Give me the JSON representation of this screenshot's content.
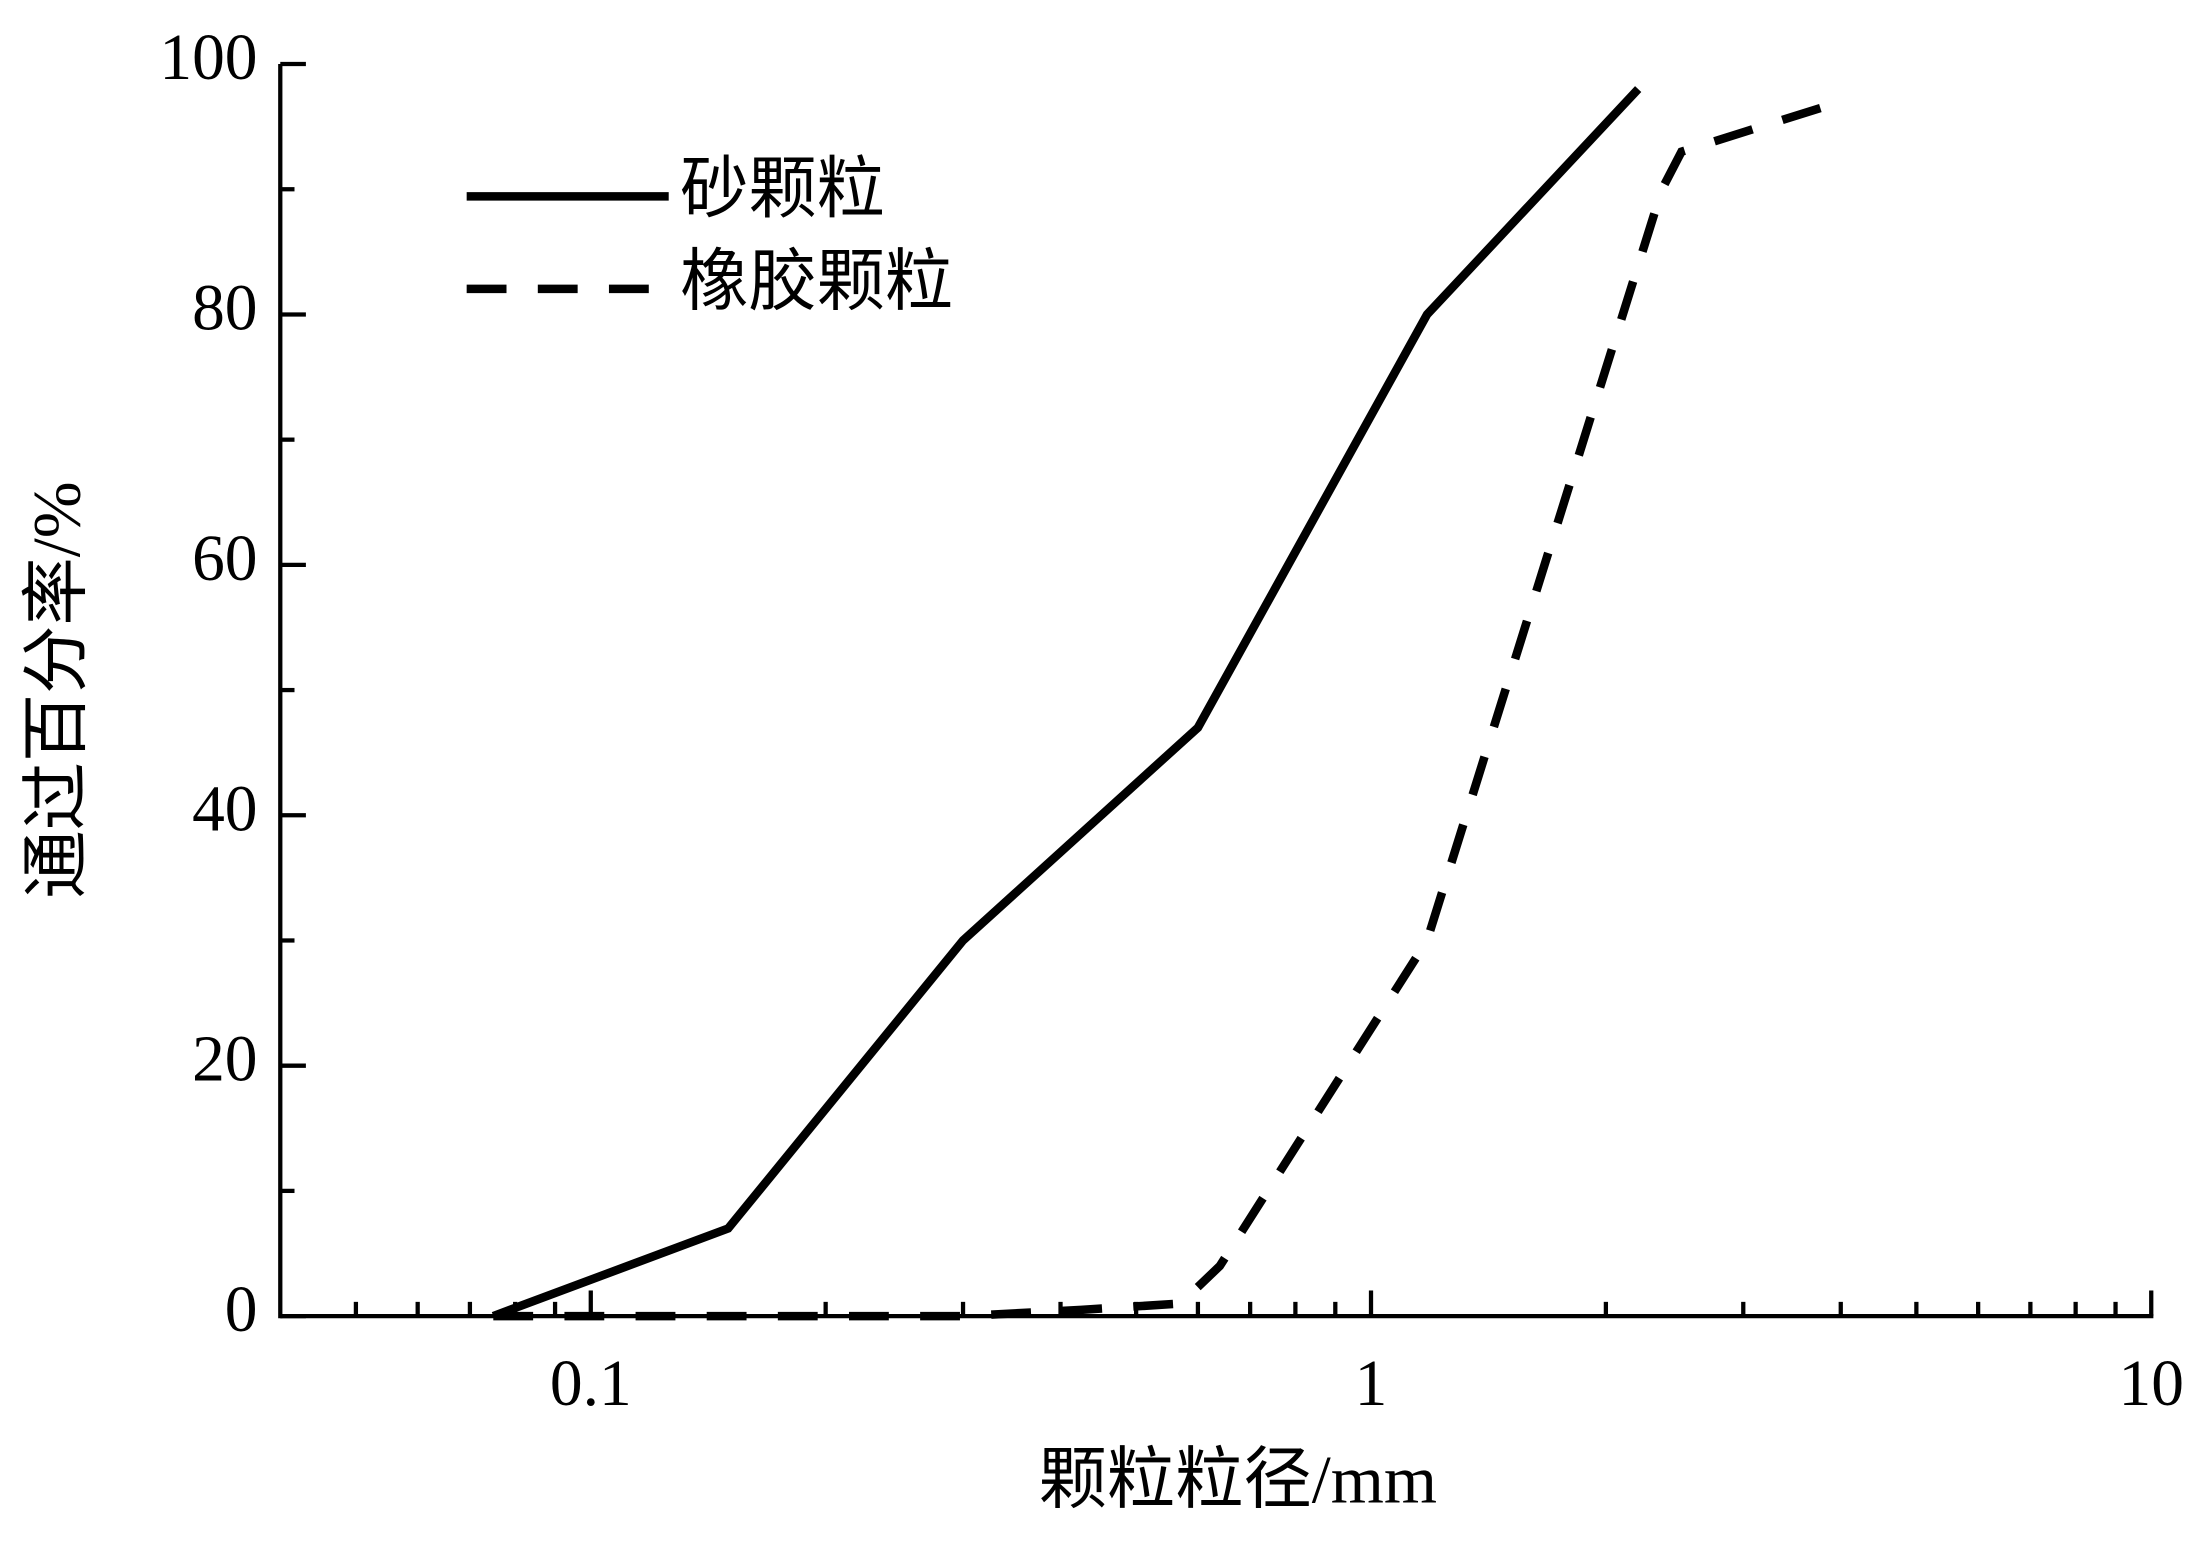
{
  "chart_data": {
    "type": "line",
    "xlabel": "颗粒粒径/mm",
    "ylabel": "通过百分率/%",
    "xscale": "log",
    "xlim": [
      0.04,
      10
    ],
    "xticks": [
      0.1,
      1,
      10
    ],
    "xminorticks": [
      0.05,
      0.06,
      0.07,
      0.08,
      0.09,
      0.2,
      0.3,
      0.4,
      0.5,
      0.6,
      0.7,
      0.8,
      0.9,
      2,
      3,
      4,
      5,
      6,
      7,
      8,
      9
    ],
    "ylim": [
      0,
      100
    ],
    "yticks": [
      0,
      20,
      40,
      60,
      80,
      100
    ],
    "yminorticks": [
      10,
      30,
      50,
      70,
      90
    ],
    "legend": "upper left",
    "series": [
      {
        "name": "砂颗粒",
        "color": "#000000",
        "dash": "solid",
        "x": [
          0.075,
          0.15,
          0.3,
          0.6,
          1.18,
          2.2
        ],
        "values": [
          0,
          7,
          30,
          47,
          80,
          98
        ]
      },
      {
        "name": "橡胶颗粒",
        "color": "#000000",
        "dash": "dashed",
        "x": [
          0.075,
          0.15,
          0.3,
          0.425,
          0.57,
          0.64,
          1.18,
          2.36,
          2.5,
          4.0
        ],
        "values": [
          0,
          0,
          0,
          0.5,
          1,
          4,
          30,
          90,
          93,
          97
        ]
      }
    ]
  }
}
